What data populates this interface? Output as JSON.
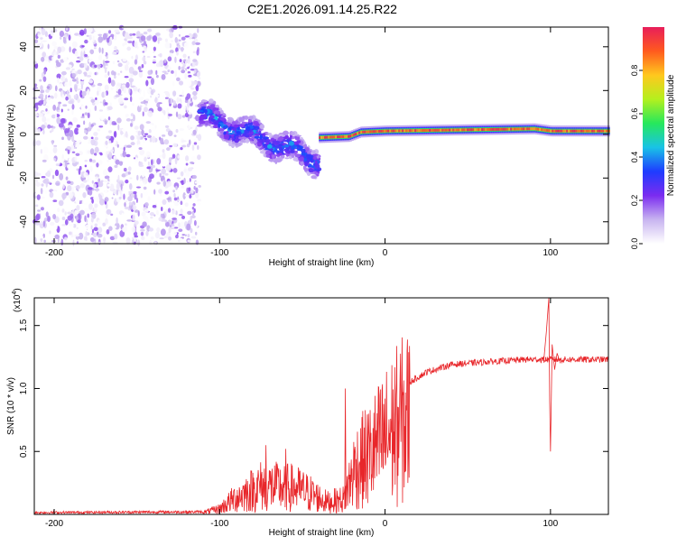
{
  "title": "C2E1.2026.091.14.25.R22",
  "colors": {
    "axis": "#000000",
    "snr_line": "#e8262a",
    "background": "#ffffff",
    "rainbow": [
      "#ffffff",
      "#c8b4f0",
      "#7b2cf0",
      "#1e3cff",
      "#19c3e6",
      "#26e85c",
      "#b4f01e",
      "#ffc81e",
      "#ff5a1e",
      "#e81e5a"
    ]
  },
  "chart_data": [
    {
      "type": "heatmap",
      "name": "spectrogram",
      "xlabel": "Height of straight line (km)",
      "ylabel": "Frequency (Hz)",
      "xlim": [
        -212,
        135
      ],
      "ylim": [
        -50,
        49
      ],
      "x_ticks": [
        -200,
        -100,
        0,
        100
      ],
      "x_tick_labels": [
        "-200",
        "-100",
        "0",
        "100"
      ],
      "y_ticks": [
        -40,
        -20,
        0,
        20,
        40
      ],
      "y_tick_labels": [
        "-40",
        "-20",
        "0",
        "20",
        "40"
      ],
      "colorbar": {
        "label": "Normalized spectral amplitude",
        "range": [
          0,
          1
        ],
        "ticks": [
          0.0,
          0.2,
          0.4,
          0.6,
          0.8
        ],
        "tick_labels": [
          "0.0",
          "0.2",
          "0.4",
          "0.6",
          "0.8"
        ]
      },
      "regions": [
        {
          "name": "noise",
          "x_range": [
            -212,
            -112
          ],
          "freq_range": [
            -50,
            49
          ],
          "amplitude_range": [
            0.0,
            0.2
          ]
        },
        {
          "name": "chirp",
          "x_range": [
            -112,
            -40
          ],
          "freq_start": 9,
          "freq_end": -12,
          "amplitude_range": [
            0.25,
            0.45
          ]
        },
        {
          "name": "tone",
          "x_range": [
            -40,
            135
          ],
          "freq": 1.5,
          "amplitude_range": [
            0.8,
            1.0
          ]
        }
      ],
      "tone_ridge": [
        {
          "x": -40,
          "freq": -1.5
        },
        {
          "x": -22,
          "freq": -1.0
        },
        {
          "x": -15,
          "freq": 1.0
        },
        {
          "x": 0,
          "freq": 1.5
        },
        {
          "x": 90,
          "freq": 2.5
        },
        {
          "x": 100,
          "freq": 1.5
        },
        {
          "x": 135,
          "freq": 1.5
        }
      ]
    },
    {
      "type": "line",
      "name": "snr",
      "xlabel": "Height of straight line (km)",
      "ylabel": "SNR (10 * v/v)",
      "y_multiplier": "(x10",
      "y_multiplier_exp": "4",
      "y_multiplier_close": ")",
      "xlim": [
        -212,
        135
      ],
      "ylim": [
        0,
        17200
      ],
      "x_ticks": [
        -200,
        -100,
        0,
        100
      ],
      "x_tick_labels": [
        "-200",
        "-100",
        "0",
        "100"
      ],
      "y_ticks": [
        5000,
        10000,
        15000
      ],
      "y_tick_labels": [
        "0.5",
        "1.0",
        "1.5"
      ],
      "series": [
        {
          "name": "SNR",
          "envelope": [
            {
              "x": -212,
              "y": 150
            },
            {
              "x": -110,
              "y": 200
            },
            {
              "x": -100,
              "y": 600
            },
            {
              "x": -90,
              "y": 1800
            },
            {
              "x": -75,
              "y": 3000
            },
            {
              "x": -55,
              "y": 2800
            },
            {
              "x": -45,
              "y": 2200
            },
            {
              "x": -35,
              "y": 1300
            },
            {
              "x": -25,
              "y": 1600
            },
            {
              "x": -18,
              "y": 5000
            },
            {
              "x": -8,
              "y": 6500
            },
            {
              "x": 5,
              "y": 9000
            },
            {
              "x": 15,
              "y": 10500
            },
            {
              "x": 25,
              "y": 11300
            },
            {
              "x": 40,
              "y": 11900
            },
            {
              "x": 60,
              "y": 12100
            },
            {
              "x": 85,
              "y": 12300
            },
            {
              "x": 135,
              "y": 12300
            }
          ],
          "spikes": [
            {
              "x": -72,
              "y": 5500
            },
            {
              "x": -60,
              "y": 5200
            },
            {
              "x": -24,
              "y": 10000
            },
            {
              "x": 99,
              "y": 17200
            },
            {
              "x": 100,
              "y": 5000
            }
          ]
        }
      ]
    }
  ]
}
